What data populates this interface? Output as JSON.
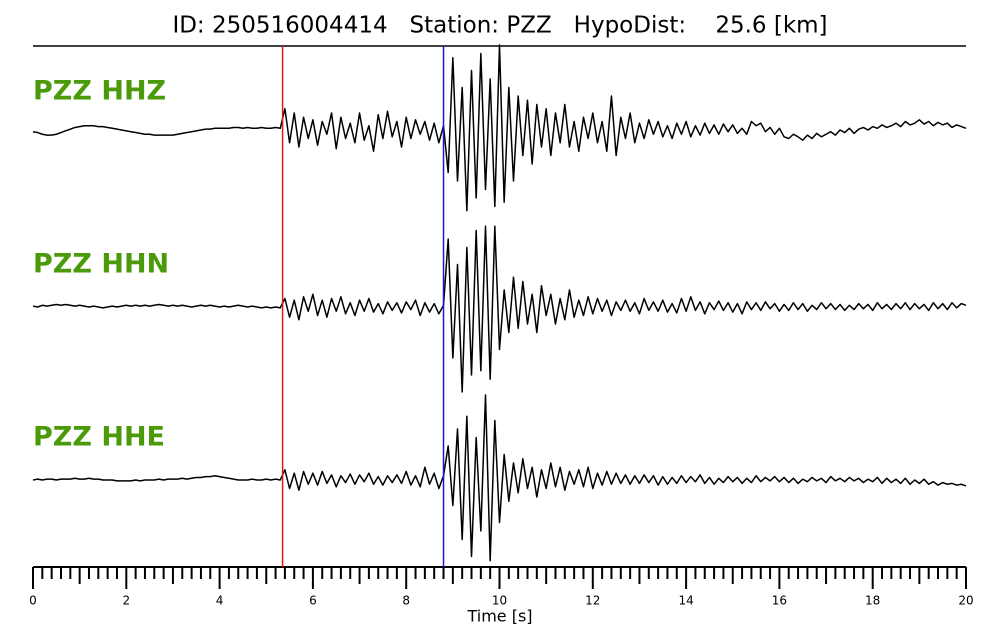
{
  "chart_data": {
    "type": "seismogram",
    "title": "ID: 250516004414   Station: PZZ   HypoDist:    25.6 [km]",
    "xlabel": "Time [s]",
    "xlim": [
      0,
      20
    ],
    "xticks": [
      0,
      2,
      4,
      6,
      8,
      10,
      12,
      14,
      16,
      18,
      20
    ],
    "xminor": [
      0.2,
      0.4,
      0.6,
      0.8,
      1,
      1.2,
      1.4,
      1.6,
      1.8,
      2.2,
      2.4,
      2.6,
      2.8,
      3,
      3.2,
      3.4,
      3.6,
      3.8,
      4.2,
      4.4,
      4.6,
      4.8,
      5,
      5.2,
      5.4,
      5.6,
      5.8,
      6.2,
      6.4,
      6.6,
      6.8,
      7,
      7.2,
      7.4,
      7.6,
      7.8,
      8.2,
      8.4,
      8.6,
      8.8,
      9,
      9.2,
      9.4,
      9.6,
      9.8,
      10.2,
      10.4,
      10.6,
      10.8,
      11,
      11.2,
      11.4,
      11.6,
      11.8,
      12.2,
      12.4,
      12.6,
      12.8,
      13,
      13.2,
      13.4,
      13.6,
      13.8,
      14.2,
      14.4,
      14.6,
      14.8,
      15,
      15.2,
      15.4,
      15.6,
      15.8,
      16.2,
      16.4,
      16.6,
      16.8,
      17,
      17.2,
      17.4,
      17.6,
      17.8,
      18.2,
      18.4,
      18.6,
      18.8,
      19,
      19.2,
      19.4,
      19.6,
      19.8
    ],
    "picks": [
      {
        "value": 5.35,
        "color": "#e8141c"
      },
      {
        "value": 8.8,
        "color": "#1a1acc"
      }
    ],
    "label_color": "#4a9a0a",
    "x": [
      0,
      0.1,
      0.2,
      0.3,
      0.4,
      0.5,
      0.6,
      0.7,
      0.8,
      0.9,
      1,
      1.1,
      1.2,
      1.3,
      1.4,
      1.5,
      1.6,
      1.7,
      1.8,
      1.9,
      2,
      2.1,
      2.2,
      2.3,
      2.4,
      2.5,
      2.6,
      2.7,
      2.8,
      2.9,
      3,
      3.1,
      3.2,
      3.3,
      3.4,
      3.5,
      3.6,
      3.7,
      3.8,
      3.9,
      4,
      4.1,
      4.2,
      4.3,
      4.4,
      4.5,
      4.6,
      4.7,
      4.8,
      4.9,
      5,
      5.1,
      5.2,
      5.3,
      5.4,
      5.5,
      5.6,
      5.7,
      5.8,
      5.9,
      6,
      6.1,
      6.2,
      6.3,
      6.4,
      6.5,
      6.6,
      6.7,
      6.8,
      6.9,
      7,
      7.1,
      7.2,
      7.3,
      7.4,
      7.5,
      7.6,
      7.7,
      7.8,
      7.9,
      8,
      8.1,
      8.2,
      8.3,
      8.4,
      8.5,
      8.6,
      8.7,
      8.8,
      8.9,
      9,
      9.1,
      9.2,
      9.3,
      9.4,
      9.5,
      9.6,
      9.7,
      9.8,
      9.9,
      10,
      10.1,
      10.2,
      10.3,
      10.4,
      10.5,
      10.6,
      10.7,
      10.8,
      10.9,
      11,
      11.1,
      11.2,
      11.3,
      11.4,
      11.5,
      11.6,
      11.7,
      11.8,
      11.9,
      12,
      12.1,
      12.2,
      12.3,
      12.4,
      12.5,
      12.6,
      12.7,
      12.8,
      12.9,
      13,
      13.1,
      13.2,
      13.3,
      13.4,
      13.5,
      13.6,
      13.7,
      13.8,
      13.9,
      14,
      14.1,
      14.2,
      14.3,
      14.4,
      14.5,
      14.6,
      14.7,
      14.8,
      14.9,
      15,
      15.1,
      15.2,
      15.3,
      15.4,
      15.5,
      15.6,
      15.7,
      15.8,
      15.9,
      16,
      16.1,
      16.2,
      16.3,
      16.4,
      16.5,
      16.6,
      16.7,
      16.8,
      16.9,
      17,
      17.1,
      17.2,
      17.3,
      17.4,
      17.5,
      17.6,
      17.7,
      17.8,
      17.9,
      18,
      18.1,
      18.2,
      18.3,
      18.4,
      18.5,
      18.6,
      18.7,
      18.8,
      18.9,
      19,
      19.1,
      19.2,
      19.3,
      19.4,
      19.5,
      19.6,
      19.7,
      19.8,
      19.9,
      20
    ],
    "series": [
      {
        "name": "PZZ HHZ",
        "color": "#000000",
        "values": [
          -0.02,
          -0.03,
          -0.05,
          -0.06,
          -0.06,
          -0.05,
          -0.03,
          -0.01,
          0.01,
          0.03,
          0.04,
          0.05,
          0.05,
          0.05,
          0.04,
          0.04,
          0.03,
          0.02,
          0.01,
          0,
          -0.01,
          -0.02,
          -0.03,
          -0.04,
          -0.05,
          -0.05,
          -0.06,
          -0.06,
          -0.06,
          -0.06,
          -0.06,
          -0.05,
          -0.04,
          -0.03,
          -0.02,
          -0.01,
          0,
          0.01,
          0.01,
          0.02,
          0.02,
          0.02,
          0.02,
          0.03,
          0.03,
          0.02,
          0.03,
          0.02,
          0.02,
          0.03,
          0.02,
          0.02,
          0.03,
          0.02,
          0.25,
          -0.15,
          0.2,
          -0.2,
          0.15,
          -0.1,
          0.12,
          -0.18,
          0.1,
          -0.05,
          0.2,
          -0.22,
          0.15,
          -0.1,
          0.08,
          -0.15,
          0.2,
          -0.12,
          0.05,
          -0.25,
          0.18,
          -0.1,
          0.22,
          -0.08,
          0.1,
          -0.2,
          0.15,
          -0.1,
          0.12,
          -0.05,
          0.1,
          -0.12,
          0.08,
          -0.15,
          0.05,
          -0.5,
          0.85,
          -0.6,
          0.5,
          -0.95,
          0.7,
          -0.8,
          0.9,
          -0.7,
          0.6,
          -0.9,
          1.0,
          -0.85,
          0.5,
          -0.6,
          0.4,
          -0.3,
          0.35,
          -0.4,
          0.3,
          -0.2,
          0.25,
          -0.3,
          0.2,
          -0.15,
          0.3,
          -0.2,
          0.1,
          -0.25,
          0.15,
          -0.1,
          0.2,
          -0.15,
          0.1,
          -0.25,
          0.4,
          -0.3,
          0.15,
          -0.1,
          0.2,
          -0.15,
          0.08,
          -0.1,
          0.12,
          -0.05,
          0.1,
          -0.08,
          0.05,
          -0.1,
          0.08,
          -0.05,
          0.1,
          -0.08,
          0.05,
          -0.06,
          0.08,
          -0.04,
          0.06,
          -0.05,
          0.07,
          -0.02,
          0.06,
          -0.04,
          0.02,
          -0.05,
          0.1,
          0.05,
          0.08,
          -0.02,
          0.03,
          -0.05,
          0.02,
          -0.08,
          -0.1,
          -0.05,
          -0.08,
          -0.12,
          -0.06,
          -0.1,
          -0.04,
          -0.08,
          -0.05,
          -0.02,
          -0.06,
          0,
          -0.03,
          0.02,
          -0.04,
          0.01,
          0.03,
          0,
          0.04,
          0.02,
          0.06,
          0.03,
          0.05,
          0.08,
          0.04,
          0.1,
          0.06,
          0.08,
          0.12,
          0.07,
          0.1,
          0.05,
          0.09,
          0.06,
          0.08,
          0.03,
          0.06,
          0.04,
          0.02
        ]
      },
      {
        "name": "PZZ HHN",
        "color": "#000000",
        "values": [
          0.01,
          0,
          0.02,
          0.01,
          0.02,
          0.03,
          0.02,
          0.03,
          0.02,
          0.01,
          0.02,
          0.01,
          0,
          0.01,
          0,
          -0.01,
          0,
          0.01,
          0,
          0.01,
          0.02,
          0.01,
          0.02,
          0.01,
          0.02,
          0.01,
          0.02,
          0.03,
          0.02,
          0.01,
          0.02,
          0.01,
          0.02,
          0.01,
          0,
          0.01,
          0.02,
          0.01,
          0.02,
          0.01,
          0,
          0.01,
          0,
          0.01,
          0.02,
          0.01,
          0,
          0.01,
          0,
          -0.01,
          0,
          -0.01,
          0,
          -0.01,
          0.1,
          -0.12,
          0.08,
          -0.15,
          0.12,
          -0.05,
          0.15,
          -0.1,
          0.08,
          -0.12,
          0.1,
          -0.05,
          0.12,
          -0.08,
          0.05,
          -0.1,
          0.08,
          -0.05,
          0.1,
          -0.06,
          0.04,
          -0.08,
          0.06,
          -0.04,
          0.05,
          -0.07,
          0.06,
          -0.03,
          0.08,
          -0.1,
          0.05,
          -0.06,
          0.04,
          -0.08,
          0.02,
          0.8,
          -0.6,
          0.5,
          -1.0,
          0.7,
          -0.8,
          0.9,
          -0.75,
          0.95,
          -0.85,
          0.95,
          -0.5,
          0.2,
          -0.3,
          0.35,
          -0.25,
          0.3,
          -0.2,
          0.15,
          -0.3,
          0.25,
          -0.1,
          0.15,
          -0.2,
          0.1,
          -0.15,
          0.2,
          -0.12,
          0.08,
          -0.1,
          0.12,
          -0.08,
          0.1,
          -0.05,
          0.08,
          -0.1,
          0.06,
          -0.04,
          0.08,
          -0.05,
          0.05,
          -0.08,
          0.1,
          -0.04,
          0.06,
          -0.05,
          0.08,
          -0.06,
          0.04,
          -0.07,
          0.1,
          -0.05,
          0.12,
          -0.04,
          0.06,
          -0.08,
          0.05,
          -0.03,
          0.07,
          -0.04,
          0.05,
          -0.06,
          0.04,
          -0.08,
          0.06,
          -0.03,
          0.05,
          -0.04,
          0.06,
          -0.02,
          0.04,
          -0.05,
          0.03,
          -0.04,
          0.05,
          -0.03,
          0.04,
          -0.05,
          0.02,
          -0.03,
          0.05,
          -0.02,
          0.04,
          -0.03,
          0.03,
          -0.04,
          0.02,
          -0.03,
          0.04,
          -0.02,
          0.03,
          -0.04,
          0.05,
          -0.02,
          0.03,
          -0.03,
          0.04,
          -0.02,
          0.05,
          -0.03,
          0.04,
          -0.02,
          0.03,
          -0.04,
          0.05,
          -0.02,
          0.04,
          -0.03,
          0.05,
          -0.01,
          0.04,
          0.02
        ]
      },
      {
        "name": "PZZ HHE",
        "color": "#000000",
        "values": [
          0,
          0.01,
          0,
          0.01,
          0.01,
          0,
          0.01,
          0.01,
          0.01,
          0.02,
          0.01,
          0.01,
          0.02,
          0.01,
          0.01,
          0,
          0,
          0,
          -0.01,
          -0.01,
          -0.01,
          -0.01,
          0,
          -0.01,
          0,
          0,
          0,
          0.01,
          0,
          0.01,
          0.01,
          0.01,
          0.02,
          0.01,
          0.02,
          0.03,
          0.03,
          0.04,
          0.04,
          0.05,
          0.04,
          0.03,
          0.02,
          0.01,
          0,
          0,
          0,
          0.01,
          0,
          0,
          0.01,
          0,
          0.01,
          0,
          0.12,
          -0.1,
          0.08,
          -0.12,
          0.1,
          -0.05,
          0.08,
          -0.06,
          0.1,
          -0.04,
          0.06,
          -0.08,
          0.05,
          -0.03,
          0.07,
          -0.05,
          0.06,
          -0.02,
          0.08,
          -0.05,
          0.04,
          -0.06,
          0.05,
          -0.03,
          0.06,
          -0.04,
          0.1,
          -0.06,
          0.05,
          -0.08,
          0.15,
          -0.05,
          0.08,
          -0.1,
          0.05,
          0.4,
          -0.3,
          0.6,
          -0.7,
          0.75,
          -0.9,
          0.5,
          -0.6,
          1.0,
          -0.95,
          0.7,
          -0.5,
          0.3,
          -0.25,
          0.2,
          -0.15,
          0.25,
          -0.1,
          0.15,
          -0.2,
          0.12,
          -0.1,
          0.2,
          -0.08,
          0.15,
          -0.12,
          0.1,
          -0.05,
          0.12,
          -0.08,
          0.15,
          -0.1,
          0.08,
          -0.06,
          0.1,
          -0.05,
          0.08,
          -0.04,
          0.06,
          -0.05,
          0.05,
          -0.04,
          0.06,
          -0.03,
          0.05,
          -0.06,
          0.04,
          -0.05,
          0.03,
          -0.04,
          0.05,
          -0.03,
          0.04,
          -0.02,
          0.06,
          -0.04,
          0.03,
          -0.05,
          0.02,
          -0.03,
          0.04,
          -0.02,
          0.03,
          -0.04,
          0.02,
          -0.03,
          0.05,
          -0.02,
          0.03,
          -0.01,
          0.04,
          -0.02,
          0.03,
          -0.03,
          0.02,
          -0.04,
          0.01,
          -0.02,
          0.03,
          -0.01,
          0.02,
          -0.03,
          0.04,
          -0.01,
          0.02,
          -0.02,
          0.03,
          -0.01,
          0.02,
          -0.03,
          0.01,
          -0.02,
          0.03,
          -0.04,
          0.02,
          -0.03,
          0.01,
          -0.04,
          0.02,
          -0.05,
          0,
          -0.04,
          0.01,
          -0.05,
          -0.02,
          -0.06,
          -0.03,
          -0.05,
          -0.04,
          -0.06,
          -0.05,
          -0.07
        ]
      }
    ]
  }
}
